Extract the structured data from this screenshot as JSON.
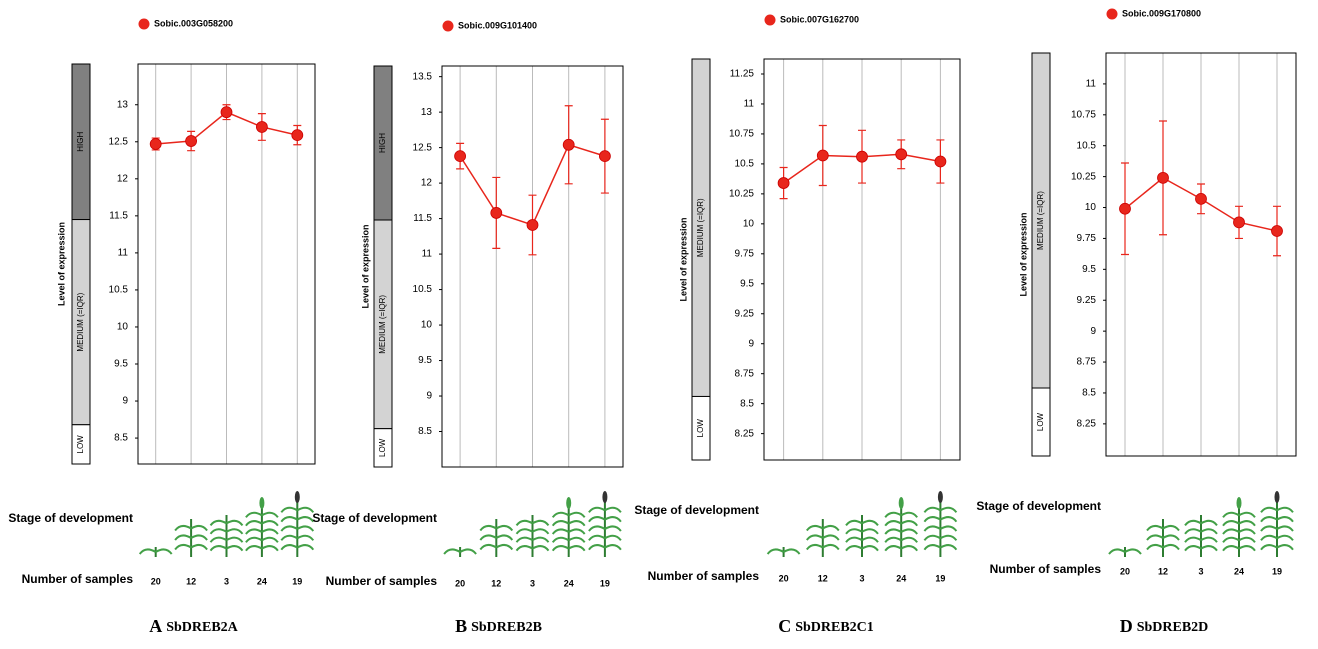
{
  "chart_data": [
    {
      "type": "line",
      "caption_letter": "A",
      "caption": "SbDREB2A",
      "ylabel": "Level of expression",
      "stage_label": "Stage of development",
      "samples_label": "Number of samples",
      "samples": [
        20,
        12,
        3,
        24,
        19
      ],
      "series": [
        {
          "name": "Sobic.003G058200",
          "color": "#e8261c",
          "values": [
            12.47,
            12.51,
            12.9,
            12.7,
            12.59
          ],
          "errors": [
            0.08,
            0.13,
            0.1,
            0.18,
            0.13
          ]
        }
      ],
      "ylim": [
        8.15,
        13.55
      ],
      "yticks": [
        8.5,
        9,
        9.5,
        10,
        10.5,
        11,
        11.5,
        12,
        12.5,
        13
      ],
      "bands": [
        {
          "label": "HIGH",
          "range": [
            11.45,
            13.55
          ],
          "color": "#808080"
        },
        {
          "label": "MEDIUM (=IQR)",
          "range": [
            8.68,
            11.45
          ],
          "color": "#d3d3d3"
        },
        {
          "label": "LOW",
          "range": [
            8.15,
            8.68
          ],
          "color": "#ffffff"
        }
      ]
    },
    {
      "type": "line",
      "caption_letter": "B",
      "caption": "SbDREB2B",
      "ylabel": "Level of expression",
      "stage_label": "Stage of development",
      "samples_label": "Number of samples",
      "samples": [
        20,
        12,
        3,
        24,
        19
      ],
      "series": [
        {
          "name": "Sobic.009G101400",
          "color": "#e8261c",
          "values": [
            12.38,
            11.58,
            11.41,
            12.54,
            12.38
          ],
          "errors": [
            0.18,
            0.5,
            0.42,
            0.55,
            0.52
          ]
        }
      ],
      "ylim": [
        8.0,
        13.65
      ],
      "yticks": [
        8.5,
        9,
        9.5,
        10,
        10.5,
        11,
        11.5,
        12,
        12.5,
        13,
        13.5
      ],
      "bands": [
        {
          "label": "HIGH",
          "range": [
            11.48,
            13.65
          ],
          "color": "#808080"
        },
        {
          "label": "MEDIUM (=IQR)",
          "range": [
            8.54,
            11.48
          ],
          "color": "#d3d3d3"
        },
        {
          "label": "LOW",
          "range": [
            8.0,
            8.54
          ],
          "color": "#ffffff"
        }
      ]
    },
    {
      "type": "line",
      "caption_letter": "C",
      "caption": "SbDREB2C1",
      "ylabel": "Level of expression",
      "stage_label": "Stage of development",
      "samples_label": "Number of samples",
      "samples": [
        20,
        12,
        3,
        24,
        19
      ],
      "series": [
        {
          "name": "Sobic.007G162700",
          "color": "#e8261c",
          "values": [
            10.34,
            10.57,
            10.56,
            10.58,
            10.52
          ],
          "errors": [
            0.13,
            0.25,
            0.22,
            0.12,
            0.18
          ]
        }
      ],
      "ylim": [
        8.03,
        11.375
      ],
      "yticks": [
        8.25,
        8.5,
        8.75,
        9,
        9.25,
        9.5,
        9.75,
        10,
        10.25,
        10.5,
        10.75,
        11,
        11.25
      ],
      "bands": [
        {
          "label": "MEDIUM (=IQR)",
          "range": [
            8.56,
            11.375
          ],
          "color": "#d3d3d3"
        },
        {
          "label": "LOW",
          "range": [
            8.03,
            8.56
          ],
          "color": "#ffffff"
        }
      ]
    },
    {
      "type": "line",
      "caption_letter": "D",
      "caption": "SbDREB2D",
      "ylabel": "Level of expression",
      "stage_label": "Stage of development",
      "samples_label": "Number of samples",
      "samples": [
        20,
        12,
        3,
        24,
        19
      ],
      "series": [
        {
          "name": "Sobic.009G170800",
          "color": "#e8261c",
          "values": [
            9.99,
            10.24,
            10.07,
            9.88,
            9.81
          ],
          "errors": [
            0.37,
            0.46,
            0.12,
            0.13,
            0.2
          ]
        }
      ],
      "ylim": [
        7.99,
        11.25
      ],
      "yticks": [
        8.25,
        8.5,
        8.75,
        9,
        9.25,
        9.5,
        9.75,
        10,
        10.25,
        10.5,
        10.75,
        11
      ],
      "bands": [
        {
          "label": "MEDIUM (=IQR)",
          "range": [
            8.54,
            11.25
          ],
          "color": "#d3d3d3"
        },
        {
          "label": "LOW",
          "range": [
            7.99,
            8.54
          ],
          "color": "#ffffff"
        }
      ]
    }
  ]
}
